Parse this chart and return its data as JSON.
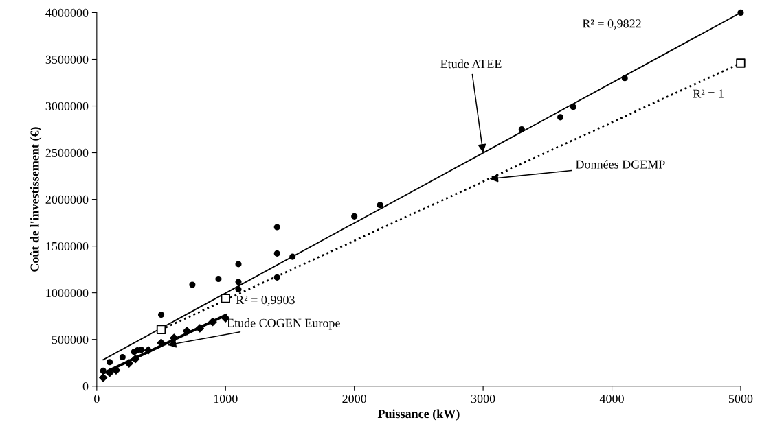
{
  "chart_data": {
    "type": "scatter",
    "xlabel": "Puissance (kW)",
    "ylabel": "Coût de l'investissement (€)",
    "xlim": [
      0,
      5000
    ],
    "xticks": [
      0,
      1000,
      2000,
      3000,
      4000,
      5000
    ],
    "ylim": [
      0,
      4000000
    ],
    "yticks": [
      0,
      500000,
      1000000,
      1500000,
      2000000,
      2500000,
      3000000,
      3500000,
      4000000
    ],
    "grid": false,
    "legend": false,
    "series": [
      {
        "marker": "circle",
        "color": "#000000",
        "x": [
          50,
          100,
          200,
          290,
          316,
          346,
          500,
          742,
          945,
          1100,
          1100,
          1100,
          1400,
          1400,
          1400,
          1520,
          2000,
          2200,
          3300,
          3600,
          3700,
          4100,
          5000
        ],
        "values": [
          164000,
          257000,
          310000,
          368000,
          384000,
          389000,
          765000,
          1085000,
          1148000,
          1307000,
          1116000,
          1037000,
          1703000,
          1421000,
          1164000,
          1386000,
          1818000,
          1940000,
          2750000,
          2880000,
          2990000,
          3300000,
          4000000
        ]
      },
      {
        "type": "line",
        "line_style": "solid",
        "color": "#000000",
        "x": [
          50,
          5000
        ],
        "values": [
          283000,
          4000000
        ]
      },
      {
        "marker": "square",
        "color": "#000000",
        "x": [
          500,
          1000,
          5000
        ],
        "values": [
          606000,
          939000,
          3460000
        ]
      },
      {
        "type": "line",
        "line_style": "dotted",
        "color": "#000000",
        "x": [
          500,
          5000
        ],
        "values": [
          606000,
          3460000
        ]
      },
      {
        "marker": "diamond",
        "color": "#000000",
        "x": [
          50,
          100,
          150,
          250,
          300,
          400,
          500,
          600,
          700,
          800,
          900,
          1000
        ],
        "values": [
          90000,
          143000,
          169000,
          243000,
          291000,
          384000,
          463000,
          516000,
          590000,
          619000,
          688000,
          728000
        ]
      },
      {
        "type": "line",
        "line_style": "solid",
        "color": "#000000",
        "x": [
          50,
          1000
        ],
        "values": [
          138000,
          759000
        ]
      }
    ],
    "annotations": [
      {
        "text": "Etude ATEE",
        "x": 3000,
        "y": 2500000
      },
      {
        "text": "Données DGEMP",
        "x": 3050,
        "y": 2220000
      },
      {
        "text": "Etude COGEN Europe",
        "x": 550,
        "y": 440000
      },
      "R² = 0,9822",
      "R² = 1",
      "R² = 0,9903"
    ]
  }
}
